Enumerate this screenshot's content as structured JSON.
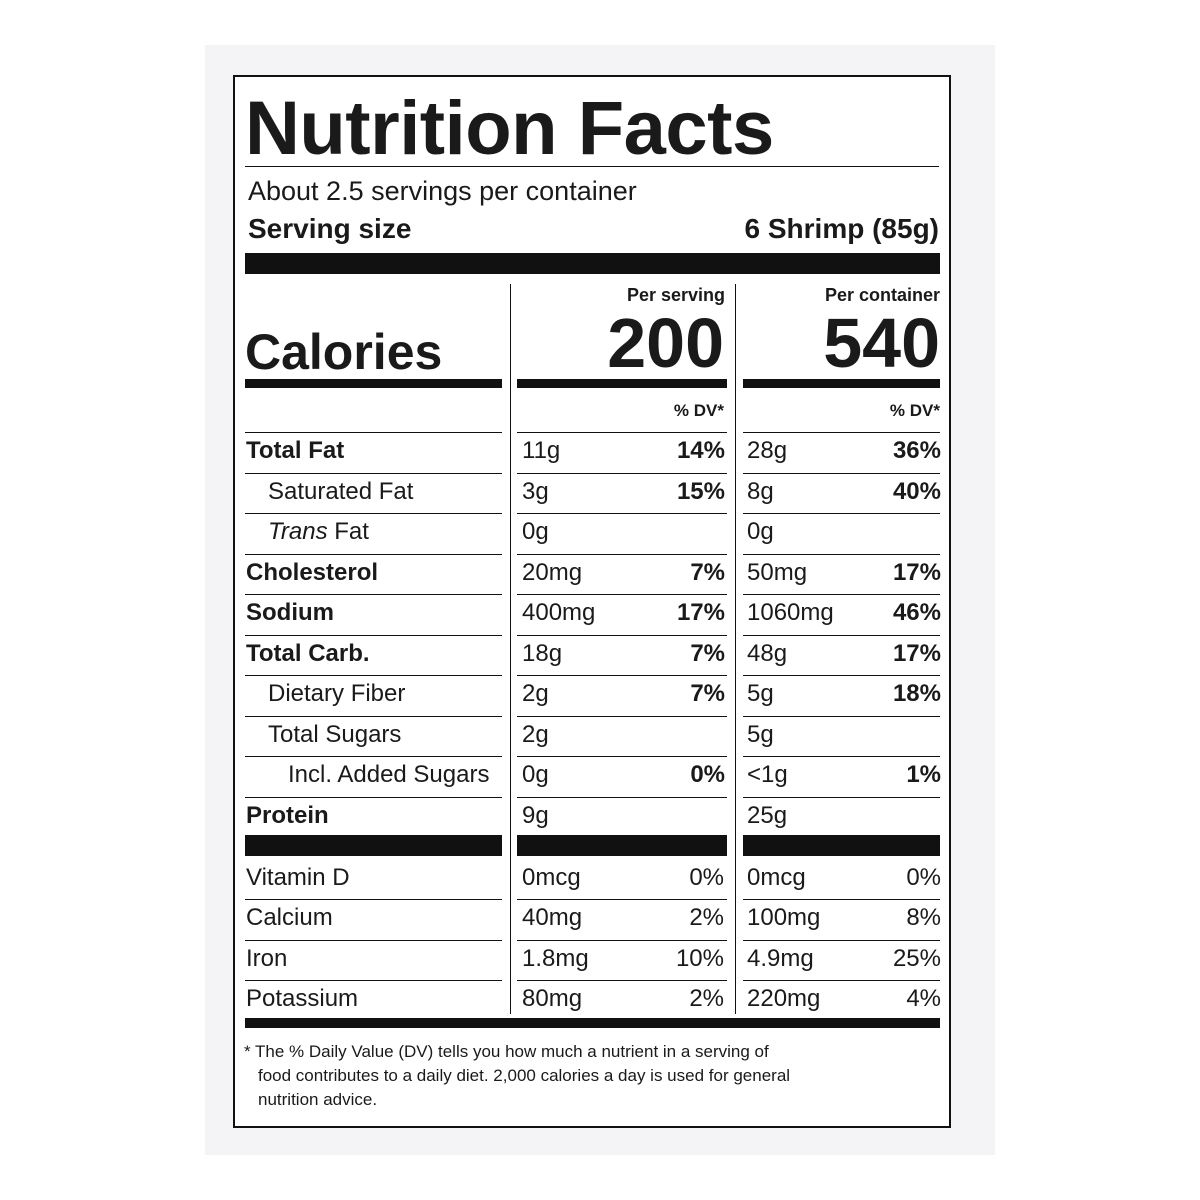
{
  "title": "Nutrition Facts",
  "servings_per_container": "About 2.5 servings per container",
  "serving_size_label": "Serving size",
  "serving_size_value": "6 Shrimp (85g)",
  "columns": {
    "per_serving": "Per serving",
    "per_container": "Per container",
    "dv_header": "% DV*"
  },
  "calories": {
    "label": "Calories",
    "per_serving": "200",
    "per_container": "540"
  },
  "nutrients": [
    {
      "label": "Total Fat",
      "bold": true,
      "indent": 0,
      "serving_amount": "11g",
      "serving_dv": "14%",
      "container_amount": "28g",
      "container_dv": "36%"
    },
    {
      "label": "Saturated Fat",
      "bold": false,
      "indent": 1,
      "serving_amount": "3g",
      "serving_dv": "15%",
      "container_amount": "8g",
      "container_dv": "40%"
    },
    {
      "label_italic": "Trans",
      "label": " Fat",
      "bold": false,
      "indent": 1,
      "serving_amount": "0g",
      "serving_dv": "",
      "container_amount": "0g",
      "container_dv": ""
    },
    {
      "label": "Cholesterol",
      "bold": true,
      "indent": 0,
      "serving_amount": "20mg",
      "serving_dv": "7%",
      "container_amount": "50mg",
      "container_dv": "17%"
    },
    {
      "label": "Sodium",
      "bold": true,
      "indent": 0,
      "serving_amount": "400mg",
      "serving_dv": "17%",
      "container_amount": "1060mg",
      "container_dv": "46%"
    },
    {
      "label": "Total Carb.",
      "bold": true,
      "indent": 0,
      "serving_amount": "18g",
      "serving_dv": "7%",
      "container_amount": "48g",
      "container_dv": "17%"
    },
    {
      "label": "Dietary Fiber",
      "bold": false,
      "indent": 1,
      "serving_amount": "2g",
      "serving_dv": "7%",
      "container_amount": "5g",
      "container_dv": "18%"
    },
    {
      "label": "Total Sugars",
      "bold": false,
      "indent": 1,
      "serving_amount": "2g",
      "serving_dv": "",
      "container_amount": "5g",
      "container_dv": ""
    },
    {
      "label": "Incl. Added Sugars",
      "bold": false,
      "indent": 2,
      "serving_amount": "0g",
      "serving_dv": "0%",
      "container_amount": "<1g",
      "container_dv": "1%"
    },
    {
      "label": "Protein",
      "bold": true,
      "indent": 0,
      "serving_amount": "9g",
      "serving_dv": "",
      "container_amount": "25g",
      "container_dv": ""
    }
  ],
  "vitamins": [
    {
      "label": "Vitamin D",
      "serving_amount": "0mcg",
      "serving_dv": "0%",
      "container_amount": "0mcg",
      "container_dv": "0%"
    },
    {
      "label": "Calcium",
      "serving_amount": "40mg",
      "serving_dv": "2%",
      "container_amount": "100mg",
      "container_dv": "8%"
    },
    {
      "label": "Iron",
      "serving_amount": "1.8mg",
      "serving_dv": "10%",
      "container_amount": "4.9mg",
      "container_dv": "25%"
    },
    {
      "label": "Potassium",
      "serving_amount": "80mg",
      "serving_dv": "2%",
      "container_amount": "220mg",
      "container_dv": "4%"
    }
  ],
  "footnote": [
    "* The % Daily Value (DV) tells you how much a nutrient in a serving of",
    "food contributes to a daily diet. 2,000 calories a day is used for general",
    "nutrition advice."
  ]
}
